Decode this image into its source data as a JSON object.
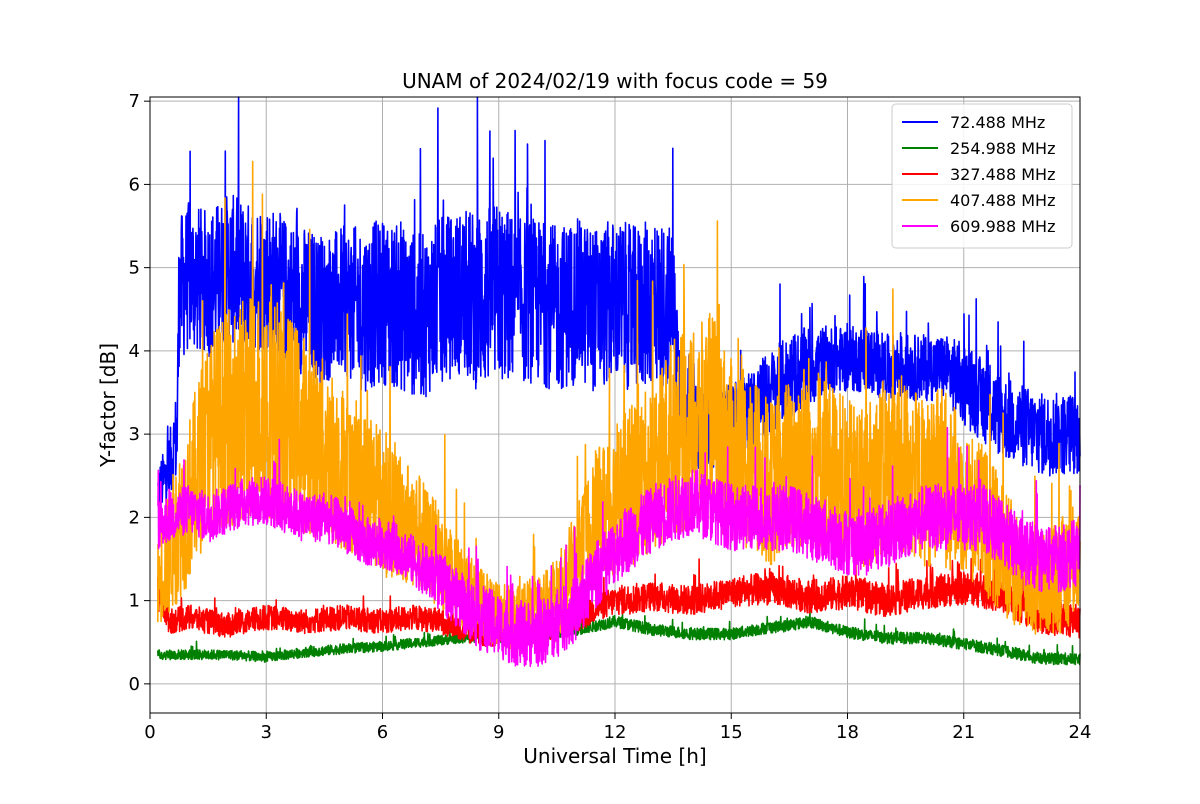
{
  "chart_data": {
    "type": "line",
    "title": "UNAM of 2024/02/19 with focus code = 59",
    "xlabel": "Universal Time [h]",
    "ylabel": "Y-factor [dB]",
    "xlim": [
      0,
      24
    ],
    "ylim": [
      -0.35,
      7.05
    ],
    "xticks": [
      0,
      3,
      6,
      9,
      12,
      15,
      18,
      21,
      24
    ],
    "yticks": [
      0,
      1,
      2,
      3,
      4,
      5,
      6,
      7
    ],
    "grid": true,
    "legend_position": "top-right",
    "series": [
      {
        "name": " 72.488 MHz",
        "color": "#0000ff",
        "x": [
          0.2,
          0.5,
          0.7,
          0.75,
          1.0,
          1.5,
          2.0,
          2.5,
          3.0,
          3.5,
          4.0,
          4.5,
          5.0,
          5.5,
          6.0,
          6.5,
          7.0,
          7.5,
          8.0,
          8.5,
          9.0,
          9.5,
          10.0,
          10.5,
          11.0,
          11.5,
          12.0,
          12.5,
          13.0,
          13.5,
          13.7,
          14.0,
          14.5,
          15.0,
          15.5,
          16.0,
          16.5,
          17.0,
          17.5,
          18.0,
          18.5,
          19.0,
          19.5,
          20.0,
          20.5,
          21.0,
          21.5,
          22.0,
          22.5,
          23.0,
          23.5,
          24.0
        ],
        "y": [
          2.3,
          2.6,
          3.0,
          4.7,
          4.9,
          4.8,
          5.0,
          4.9,
          4.9,
          4.7,
          4.6,
          4.5,
          4.6,
          4.5,
          4.6,
          4.5,
          4.4,
          4.6,
          4.7,
          4.6,
          4.7,
          4.6,
          4.6,
          4.5,
          4.6,
          4.5,
          4.6,
          4.5,
          4.6,
          4.5,
          3.5,
          3.1,
          3.0,
          3.1,
          3.3,
          3.5,
          3.7,
          3.8,
          3.9,
          3.9,
          3.9,
          3.8,
          3.8,
          3.8,
          3.8,
          3.6,
          3.4,
          3.2,
          3.1,
          3.0,
          3.0,
          3.0
        ],
        "spread": [
          0.3,
          0.4,
          0.6,
          0.9,
          0.9,
          0.9,
          0.9,
          0.9,
          0.9,
          0.9,
          0.9,
          0.9,
          0.9,
          1.0,
          1.0,
          1.0,
          1.0,
          1.0,
          1.0,
          1.1,
          1.1,
          1.0,
          1.0,
          1.0,
          1.0,
          1.0,
          1.0,
          1.0,
          1.0,
          1.0,
          0.6,
          0.5,
          0.5,
          0.5,
          0.5,
          0.5,
          0.5,
          0.5,
          0.4,
          0.4,
          0.4,
          0.4,
          0.4,
          0.4,
          0.4,
          0.5,
          0.5,
          0.5,
          0.5,
          0.5,
          0.5,
          0.5
        ]
      },
      {
        "name": "254.988 MHz",
        "color": "#008000",
        "x": [
          0.2,
          1.0,
          2.0,
          3.0,
          4.0,
          5.0,
          6.0,
          7.0,
          8.0,
          9.0,
          10.0,
          11.0,
          11.5,
          12.0,
          13.0,
          14.0,
          15.0,
          16.0,
          16.5,
          17.0,
          18.0,
          19.0,
          20.0,
          21.0,
          22.0,
          23.0,
          24.0
        ],
        "y": [
          0.35,
          0.35,
          0.35,
          0.32,
          0.38,
          0.42,
          0.45,
          0.5,
          0.55,
          0.55,
          0.58,
          0.65,
          0.7,
          0.75,
          0.65,
          0.6,
          0.6,
          0.68,
          0.7,
          0.75,
          0.62,
          0.55,
          0.55,
          0.48,
          0.4,
          0.3,
          0.3
        ],
        "spread": [
          0.06,
          0.06,
          0.06,
          0.06,
          0.06,
          0.06,
          0.06,
          0.06,
          0.06,
          0.06,
          0.07,
          0.07,
          0.07,
          0.07,
          0.07,
          0.07,
          0.07,
          0.07,
          0.07,
          0.07,
          0.07,
          0.07,
          0.07,
          0.07,
          0.07,
          0.07,
          0.07
        ]
      },
      {
        "name": "327.488 MHz",
        "color": "#ff0000",
        "x": [
          0.2,
          0.5,
          1.0,
          2.0,
          3.0,
          4.0,
          5.0,
          6.0,
          6.8,
          7.5,
          8.5,
          9.5,
          10.5,
          11.2,
          11.5,
          12.0,
          13.0,
          14.0,
          15.0,
          16.0,
          17.0,
          18.0,
          19.0,
          20.0,
          21.0,
          22.0,
          23.0,
          24.0
        ],
        "y": [
          1.1,
          0.75,
          0.8,
          0.7,
          0.8,
          0.75,
          0.8,
          0.75,
          0.8,
          0.75,
          0.6,
          0.6,
          0.7,
          0.8,
          0.9,
          1.0,
          1.05,
          1.0,
          1.1,
          1.15,
          1.05,
          1.1,
          1.0,
          1.1,
          1.15,
          1.05,
          0.8,
          0.75
        ],
        "spread": [
          0.2,
          0.15,
          0.15,
          0.15,
          0.15,
          0.15,
          0.15,
          0.15,
          0.15,
          0.15,
          0.15,
          0.15,
          0.15,
          0.15,
          0.15,
          0.18,
          0.18,
          0.18,
          0.18,
          0.2,
          0.2,
          0.2,
          0.2,
          0.2,
          0.2,
          0.2,
          0.2,
          0.2
        ]
      },
      {
        "name": "407.488 MHz",
        "color": "#ffa500",
        "x": [
          0.2,
          0.5,
          1.0,
          1.5,
          2.0,
          2.5,
          3.0,
          3.5,
          4.0,
          4.5,
          5.0,
          5.5,
          6.0,
          6.5,
          7.0,
          7.5,
          8.0,
          8.5,
          9.0,
          9.5,
          10.0,
          10.5,
          11.0,
          11.5,
          12.0,
          12.5,
          13.0,
          13.5,
          14.0,
          14.5,
          15.0,
          15.5,
          16.0,
          16.5,
          17.0,
          17.5,
          18.0,
          18.5,
          19.0,
          19.5,
          20.0,
          20.5,
          21.0,
          21.5,
          22.0,
          22.5,
          23.0,
          23.5,
          24.0
        ],
        "y": [
          1.2,
          1.6,
          2.2,
          3.0,
          3.2,
          3.3,
          3.4,
          3.2,
          3.0,
          2.8,
          2.6,
          2.4,
          2.2,
          2.0,
          1.8,
          1.5,
          1.2,
          1.0,
          0.8,
          0.8,
          0.9,
          1.0,
          1.5,
          2.0,
          2.2,
          2.4,
          2.6,
          3.0,
          3.0,
          3.2,
          2.8,
          2.6,
          2.4,
          2.6,
          2.8,
          2.6,
          2.4,
          2.4,
          2.6,
          2.6,
          2.4,
          2.5,
          2.2,
          2.0,
          1.6,
          1.3,
          1.2,
          1.3,
          1.5
        ],
        "spread": [
          0.5,
          0.8,
          1.0,
          1.2,
          1.3,
          1.4,
          1.4,
          1.3,
          1.2,
          1.1,
          1.0,
          0.9,
          0.9,
          0.8,
          0.7,
          0.6,
          0.5,
          0.4,
          0.4,
          0.4,
          0.4,
          0.5,
          0.6,
          0.8,
          0.9,
          1.0,
          1.0,
          1.2,
          1.2,
          1.3,
          1.1,
          1.1,
          1.0,
          1.1,
          1.2,
          1.1,
          1.0,
          1.0,
          1.1,
          1.1,
          1.0,
          1.1,
          0.9,
          0.9,
          0.8,
          0.7,
          0.6,
          0.7,
          0.7
        ]
      },
      {
        "name": "609.988 MHz",
        "color": "#ff00ff",
        "x": [
          0.2,
          0.5,
          1.0,
          1.5,
          2.0,
          2.5,
          3.0,
          3.5,
          4.0,
          4.5,
          5.0,
          5.5,
          6.0,
          6.5,
          7.0,
          7.5,
          8.0,
          8.5,
          9.0,
          9.5,
          10.0,
          10.5,
          11.0,
          11.5,
          12.0,
          12.5,
          13.0,
          13.5,
          14.0,
          14.5,
          15.0,
          15.5,
          16.0,
          16.5,
          17.0,
          17.5,
          18.0,
          18.5,
          19.0,
          19.5,
          20.0,
          20.5,
          21.0,
          21.5,
          22.0,
          22.5,
          23.0,
          23.5,
          24.0
        ],
        "y": [
          1.9,
          2.0,
          2.1,
          2.0,
          2.1,
          2.2,
          2.2,
          2.1,
          2.0,
          2.0,
          1.9,
          1.7,
          1.7,
          1.6,
          1.4,
          1.2,
          1.0,
          0.8,
          0.7,
          0.6,
          0.6,
          0.7,
          0.9,
          1.3,
          1.6,
          1.8,
          2.0,
          2.1,
          2.2,
          2.1,
          2.0,
          2.0,
          2.0,
          2.0,
          1.9,
          1.8,
          1.7,
          1.7,
          1.8,
          1.9,
          2.0,
          2.0,
          2.0,
          2.0,
          1.8,
          1.6,
          1.5,
          1.5,
          1.6
        ],
        "spread": [
          0.3,
          0.3,
          0.3,
          0.3,
          0.3,
          0.3,
          0.3,
          0.3,
          0.3,
          0.3,
          0.3,
          0.3,
          0.3,
          0.3,
          0.3,
          0.35,
          0.35,
          0.4,
          0.4,
          0.4,
          0.4,
          0.4,
          0.4,
          0.4,
          0.4,
          0.4,
          0.4,
          0.4,
          0.4,
          0.4,
          0.4,
          0.4,
          0.4,
          0.4,
          0.4,
          0.4,
          0.4,
          0.4,
          0.4,
          0.4,
          0.4,
          0.4,
          0.4,
          0.4,
          0.4,
          0.4,
          0.4,
          0.4,
          0.4
        ]
      }
    ]
  }
}
